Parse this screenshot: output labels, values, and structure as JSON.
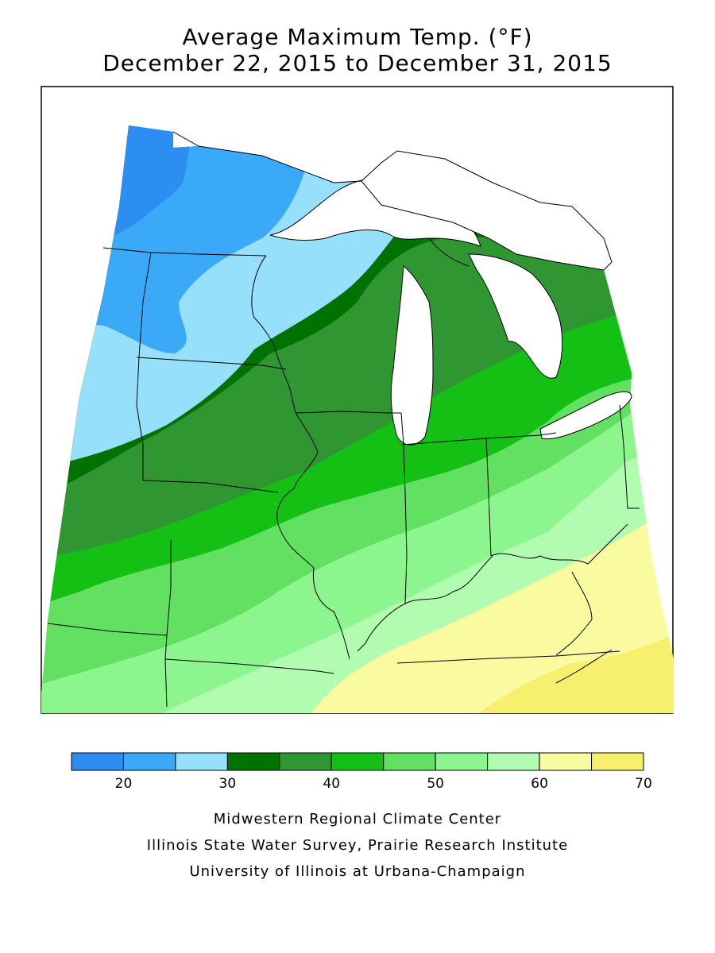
{
  "title": {
    "line1": "Average Maximum Temp. (°F)",
    "line2": "December 22, 2015 to December 31, 2015"
  },
  "legend": {
    "bins": [
      {
        "color": "#2b8ef0"
      },
      {
        "color": "#3aa9f7"
      },
      {
        "color": "#96e0fb"
      },
      {
        "color": "#007200"
      },
      {
        "color": "#2f9632"
      },
      {
        "color": "#14c014"
      },
      {
        "color": "#61e061"
      },
      {
        "color": "#8df58d"
      },
      {
        "color": "#b2fcb2"
      },
      {
        "color": "#fafaa0"
      },
      {
        "color": "#f7ef6e"
      }
    ],
    "tick_labels": [
      "20",
      "30",
      "40",
      "50",
      "60",
      "70"
    ]
  },
  "credits": {
    "line1": "Midwestern Regional Climate Center",
    "line2": "Illinois State Water Survey, Prairie Research Institute",
    "line3": "University of Illinois at Urbana-Champaign"
  }
}
